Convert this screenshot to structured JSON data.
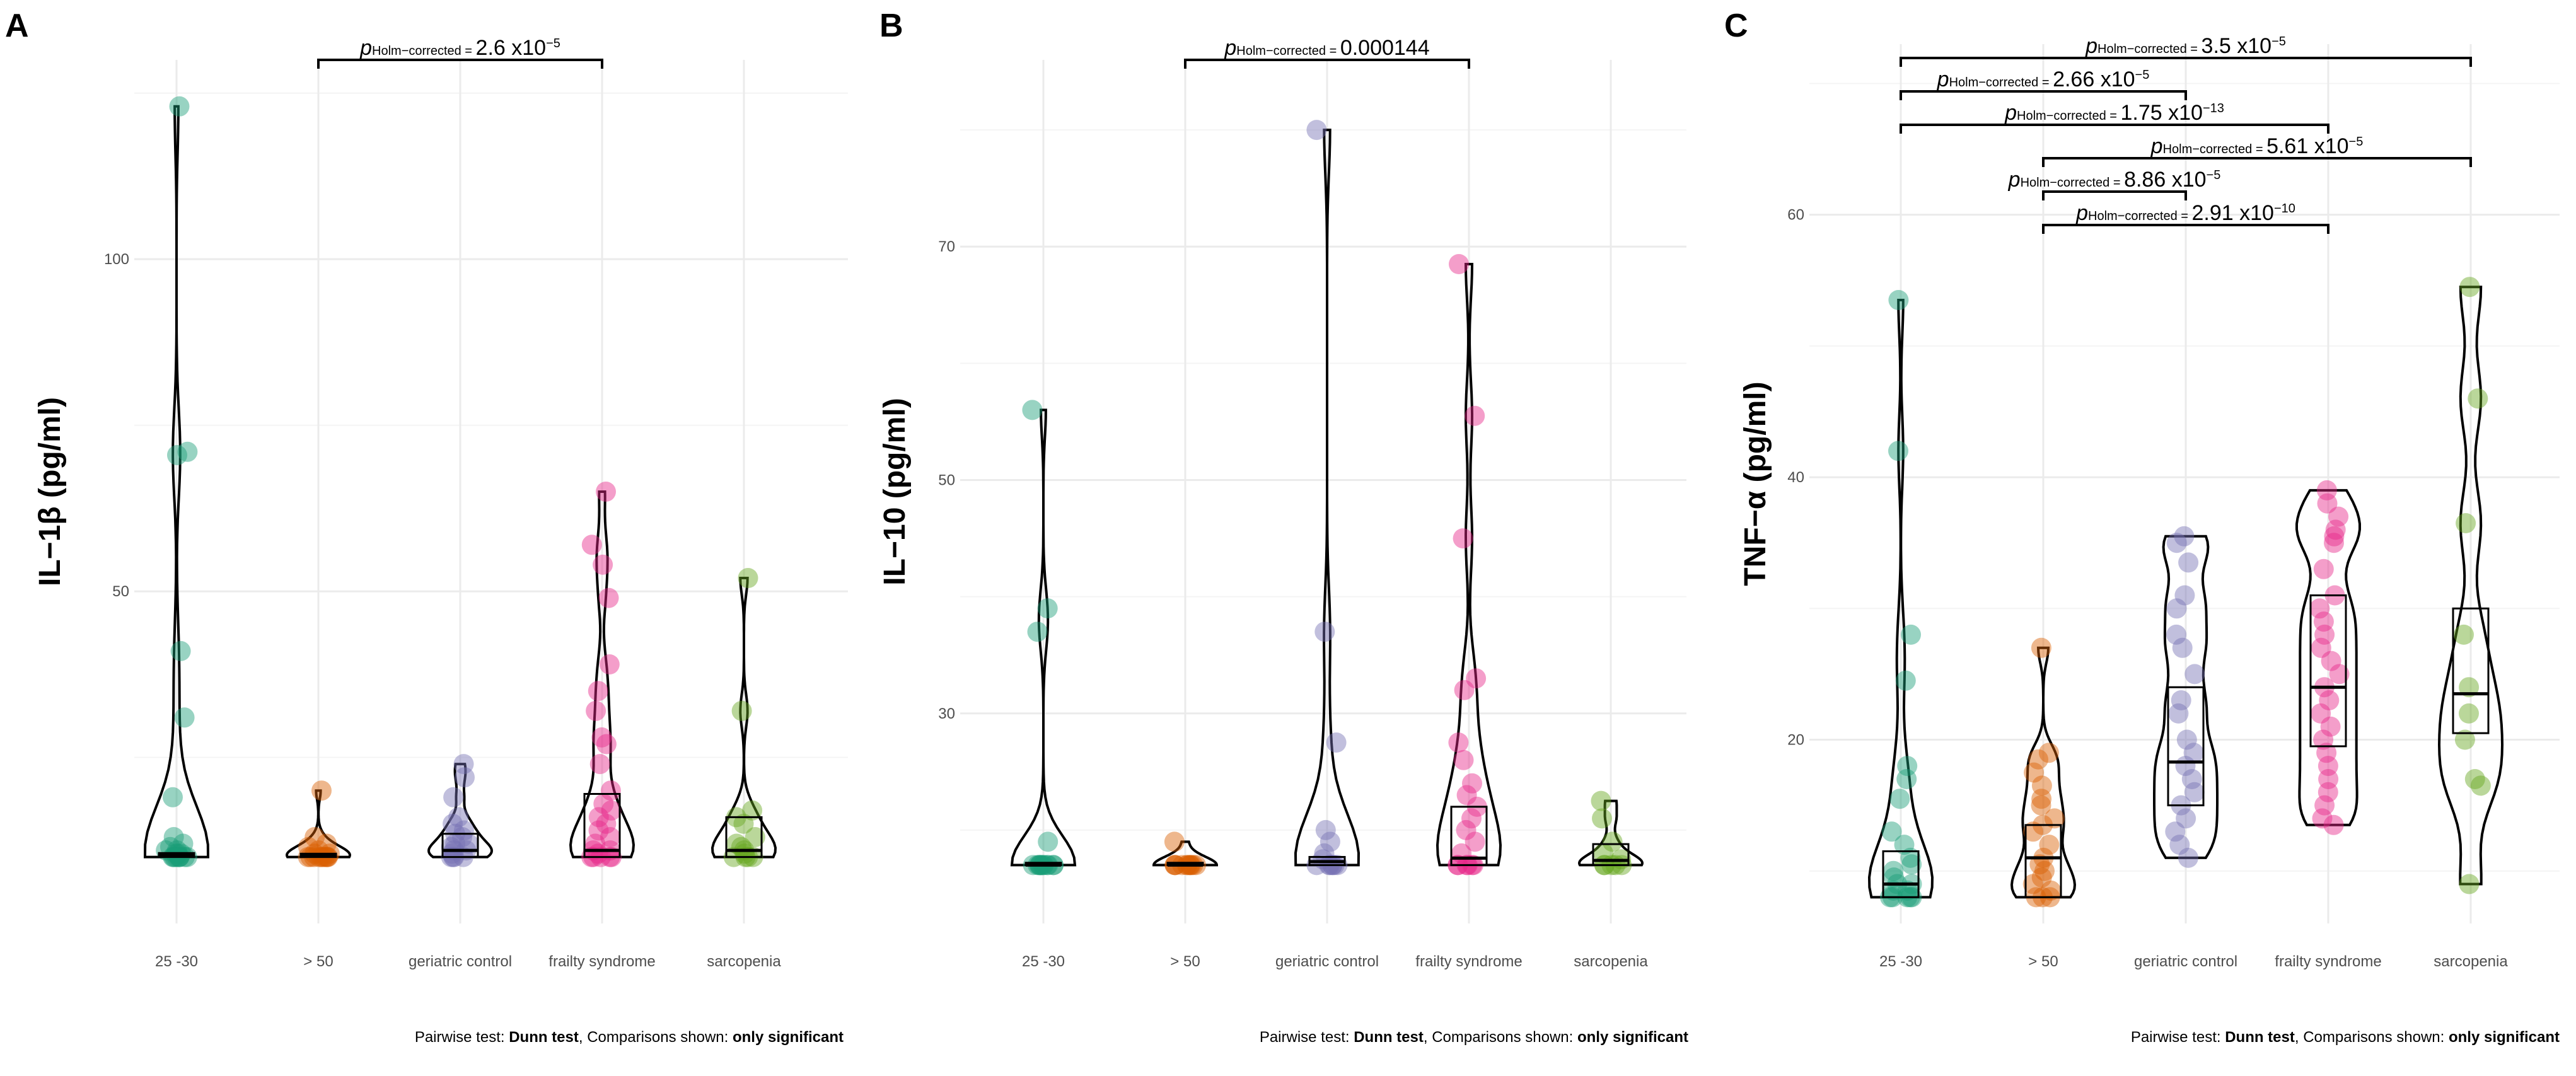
{
  "chart_data": [
    {
      "type": "violin-box-scatter",
      "panel_label": "A",
      "ylabel": "IL−1β (pg/ml)",
      "ylim": [
        0,
        130
      ],
      "yticks": [
        50,
        100
      ],
      "minor_yticks": [
        25,
        75,
        125
      ],
      "categories": [
        "25 -30",
        "> 50",
        "geriatric control",
        "frailty syndrome",
        "sarcopenia"
      ],
      "caption": {
        "prefix": "Pairwise test: ",
        "test": "Dunn test",
        "middle": ", Comparisons shown: ",
        "shown": "only significant"
      },
      "comparisons": [
        {
          "from": "> 50",
          "to": "frailty syndrome",
          "label_prefix": "p",
          "label_sub": "Holm−corrected",
          "label_eq": " = ",
          "label_value": "2.6 x10",
          "label_exp": "−5"
        }
      ],
      "series": [
        {
          "name": "25 -30",
          "color": "#1b9e77",
          "values": [
            123,
            71,
            70.5,
            41,
            31,
            19,
            13,
            12,
            11.5,
            11,
            11,
            10.5,
            10.5,
            10.5,
            10,
            10,
            10,
            10,
            10,
            10,
            10,
            10,
            10
          ],
          "box": {
            "q1": 10,
            "median": 10.3,
            "q3": 10.6
          }
        },
        {
          "name": "> 50",
          "color": "#d95f02",
          "values": [
            20,
            13,
            12,
            11.5,
            11,
            10.5,
            10.5,
            10,
            10,
            10,
            10,
            10,
            10,
            10,
            10,
            10,
            10
          ],
          "box": {
            "q1": 10,
            "median": 10.2,
            "q3": 10.5
          }
        },
        {
          "name": "geriatric control",
          "color": "#7570b3",
          "values": [
            24,
            22,
            19,
            16,
            15,
            14,
            13.5,
            13,
            12,
            12,
            11.5,
            11,
            11,
            10.5,
            10,
            10,
            10,
            10
          ],
          "box": {
            "q1": 10,
            "median": 11,
            "q3": 13.5
          }
        },
        {
          "name": "frailty syndrome",
          "color": "#e7298a",
          "values": [
            65,
            57,
            54,
            49,
            39,
            35,
            32,
            28,
            27,
            24,
            20,
            18,
            17,
            16,
            15,
            14,
            13,
            12,
            11,
            11,
            10.5,
            10,
            10,
            10,
            10,
            10
          ],
          "box": {
            "q1": 10,
            "median": 11,
            "q3": 19.5
          }
        },
        {
          "name": "sarcopenia",
          "color": "#66a61e",
          "values": [
            52,
            32,
            17,
            16,
            15,
            13,
            12,
            11.5,
            11,
            10.5,
            10,
            10,
            10,
            10
          ],
          "box": {
            "q1": 10,
            "median": 11,
            "q3": 16
          }
        }
      ]
    },
    {
      "type": "violin-box-scatter",
      "panel_label": "B",
      "ylabel": "IL−10 (pg/ml)",
      "ylim": [
        12,
        86
      ],
      "yticks": [
        30,
        50,
        70
      ],
      "minor_yticks": [
        20,
        40,
        60,
        80
      ],
      "categories": [
        "25 -30",
        "> 50",
        "geriatric control",
        "frailty syndrome",
        "sarcopenia"
      ],
      "caption": {
        "prefix": "Pairwise test: ",
        "test": "Dunn test",
        "middle": ", Comparisons shown: ",
        "shown": "only significant"
      },
      "comparisons": [
        {
          "from": "> 50",
          "to": "frailty syndrome",
          "label_prefix": "p",
          "label_sub": "Holm−corrected",
          "label_eq": " = ",
          "label_value": "0.000144",
          "label_exp": ""
        }
      ],
      "series": [
        {
          "name": "25 -30",
          "color": "#1b9e77",
          "values": [
            56,
            39,
            37,
            19,
            17,
            17,
            17,
            17,
            17,
            17,
            17,
            17,
            17,
            17,
            17,
            17
          ],
          "box": {
            "q1": 17,
            "median": 17,
            "q3": 17.2
          }
        },
        {
          "name": "> 50",
          "color": "#d95f02",
          "values": [
            19,
            17,
            17,
            17,
            17,
            17,
            17,
            17,
            17,
            17,
            17,
            17
          ],
          "box": {
            "q1": 17,
            "median": 17,
            "q3": 17.2
          }
        },
        {
          "name": "geriatric control",
          "color": "#7570b3",
          "values": [
            80,
            37,
            27.5,
            20,
            19,
            18,
            17.5,
            17,
            17,
            17,
            17,
            17,
            17,
            17
          ],
          "box": {
            "q1": 17,
            "median": 17.3,
            "q3": 17.7
          }
        },
        {
          "name": "frailty syndrome",
          "color": "#e7298a",
          "values": [
            68.5,
            55.5,
            45,
            33,
            32,
            27.5,
            26,
            24,
            23,
            22,
            21,
            20,
            19,
            18,
            17,
            17,
            17,
            17,
            17,
            17
          ],
          "box": {
            "q1": 17,
            "median": 17.6,
            "q3": 22
          }
        },
        {
          "name": "sarcopenia",
          "color": "#66a61e",
          "values": [
            22.5,
            21,
            19,
            18,
            17.5,
            17,
            17,
            17,
            17,
            17
          ],
          "box": {
            "q1": 17,
            "median": 17.4,
            "q3": 18.8
          }
        }
      ]
    },
    {
      "type": "violin-box-scatter",
      "panel_label": "C",
      "ylabel": "TNF−α (pg/ml)",
      "ylim": [
        6,
        73
      ],
      "yticks": [
        20,
        40,
        60
      ],
      "minor_yticks": [
        10,
        30,
        50,
        70
      ],
      "categories": [
        "25 -30",
        "> 50",
        "geriatric control",
        "frailty syndrome",
        "sarcopenia"
      ],
      "caption": {
        "prefix": "Pairwise test: ",
        "test": "Dunn test",
        "middle": ", Comparisons shown: ",
        "shown": "only significant"
      },
      "comparisons": [
        {
          "from": "25 -30",
          "to": "sarcopenia",
          "label_prefix": "p",
          "label_sub": "Holm−corrected",
          "label_eq": " = ",
          "label_value": "3.5 x10",
          "label_exp": "−5"
        },
        {
          "from": "25 -30",
          "to": "geriatric control",
          "label_prefix": "p",
          "label_sub": "Holm−corrected",
          "label_eq": " = ",
          "label_value": "2.66 x10",
          "label_exp": "−5"
        },
        {
          "from": "25 -30",
          "to": "frailty syndrome",
          "label_prefix": "p",
          "label_sub": "Holm−corrected",
          "label_eq": " = ",
          "label_value": "1.75 x10",
          "label_exp": "−13"
        },
        {
          "from": "> 50",
          "to": "sarcopenia",
          "label_prefix": "p",
          "label_sub": "Holm−corrected",
          "label_eq": " = ",
          "label_value": "5.61 x10",
          "label_exp": "−5"
        },
        {
          "from": "> 50",
          "to": "geriatric control",
          "label_prefix": "p",
          "label_sub": "Holm−corrected",
          "label_eq": " = ",
          "label_value": "8.86 x10",
          "label_exp": "−5"
        },
        {
          "from": "> 50",
          "to": "frailty syndrome",
          "label_prefix": "p",
          "label_sub": "Holm−corrected",
          "label_eq": " = ",
          "label_value": "2.91 x10",
          "label_exp": "−10"
        }
      ],
      "series": [
        {
          "name": "25 -30",
          "color": "#1b9e77",
          "values": [
            53.5,
            42,
            28,
            24.5,
            18,
            17,
            15.5,
            13,
            12,
            11,
            10.5,
            10,
            9.5,
            9,
            9,
            8.5,
            8.5,
            8,
            8,
            8,
            8,
            8
          ],
          "box": {
            "q1": 8,
            "median": 9,
            "q3": 11.5
          }
        },
        {
          "name": "> 50",
          "color": "#d95f02",
          "values": [
            27,
            19,
            18.5,
            17.5,
            16.5,
            15.5,
            15,
            14,
            13.5,
            13,
            12,
            11,
            10.5,
            10,
            9.5,
            9,
            8.5,
            8,
            8,
            8
          ],
          "box": {
            "q1": 8,
            "median": 11,
            "q3": 13.5
          }
        },
        {
          "name": "geriatric control",
          "color": "#7570b3",
          "values": [
            35.5,
            35,
            33.5,
            31,
            30,
            28,
            27,
            25,
            23,
            22,
            20,
            19,
            18,
            17,
            16,
            15,
            14,
            13,
            12,
            11
          ],
          "box": {
            "q1": 15,
            "median": 18.3,
            "q3": 24
          }
        },
        {
          "name": "frailty syndrome",
          "color": "#e7298a",
          "values": [
            39,
            38,
            37,
            36,
            35.5,
            35,
            33,
            31,
            30,
            29,
            28,
            27,
            26,
            25,
            24,
            23,
            22,
            21,
            20,
            19,
            18,
            17,
            16,
            15,
            14,
            13.5
          ],
          "box": {
            "q1": 19.5,
            "median": 24,
            "q3": 31
          }
        },
        {
          "name": "sarcopenia",
          "color": "#66a61e",
          "values": [
            54.5,
            46,
            36.5,
            28,
            24,
            22,
            20,
            17,
            16.5,
            9
          ],
          "box": {
            "q1": 20.5,
            "median": 23.5,
            "q3": 30
          }
        }
      ]
    }
  ]
}
